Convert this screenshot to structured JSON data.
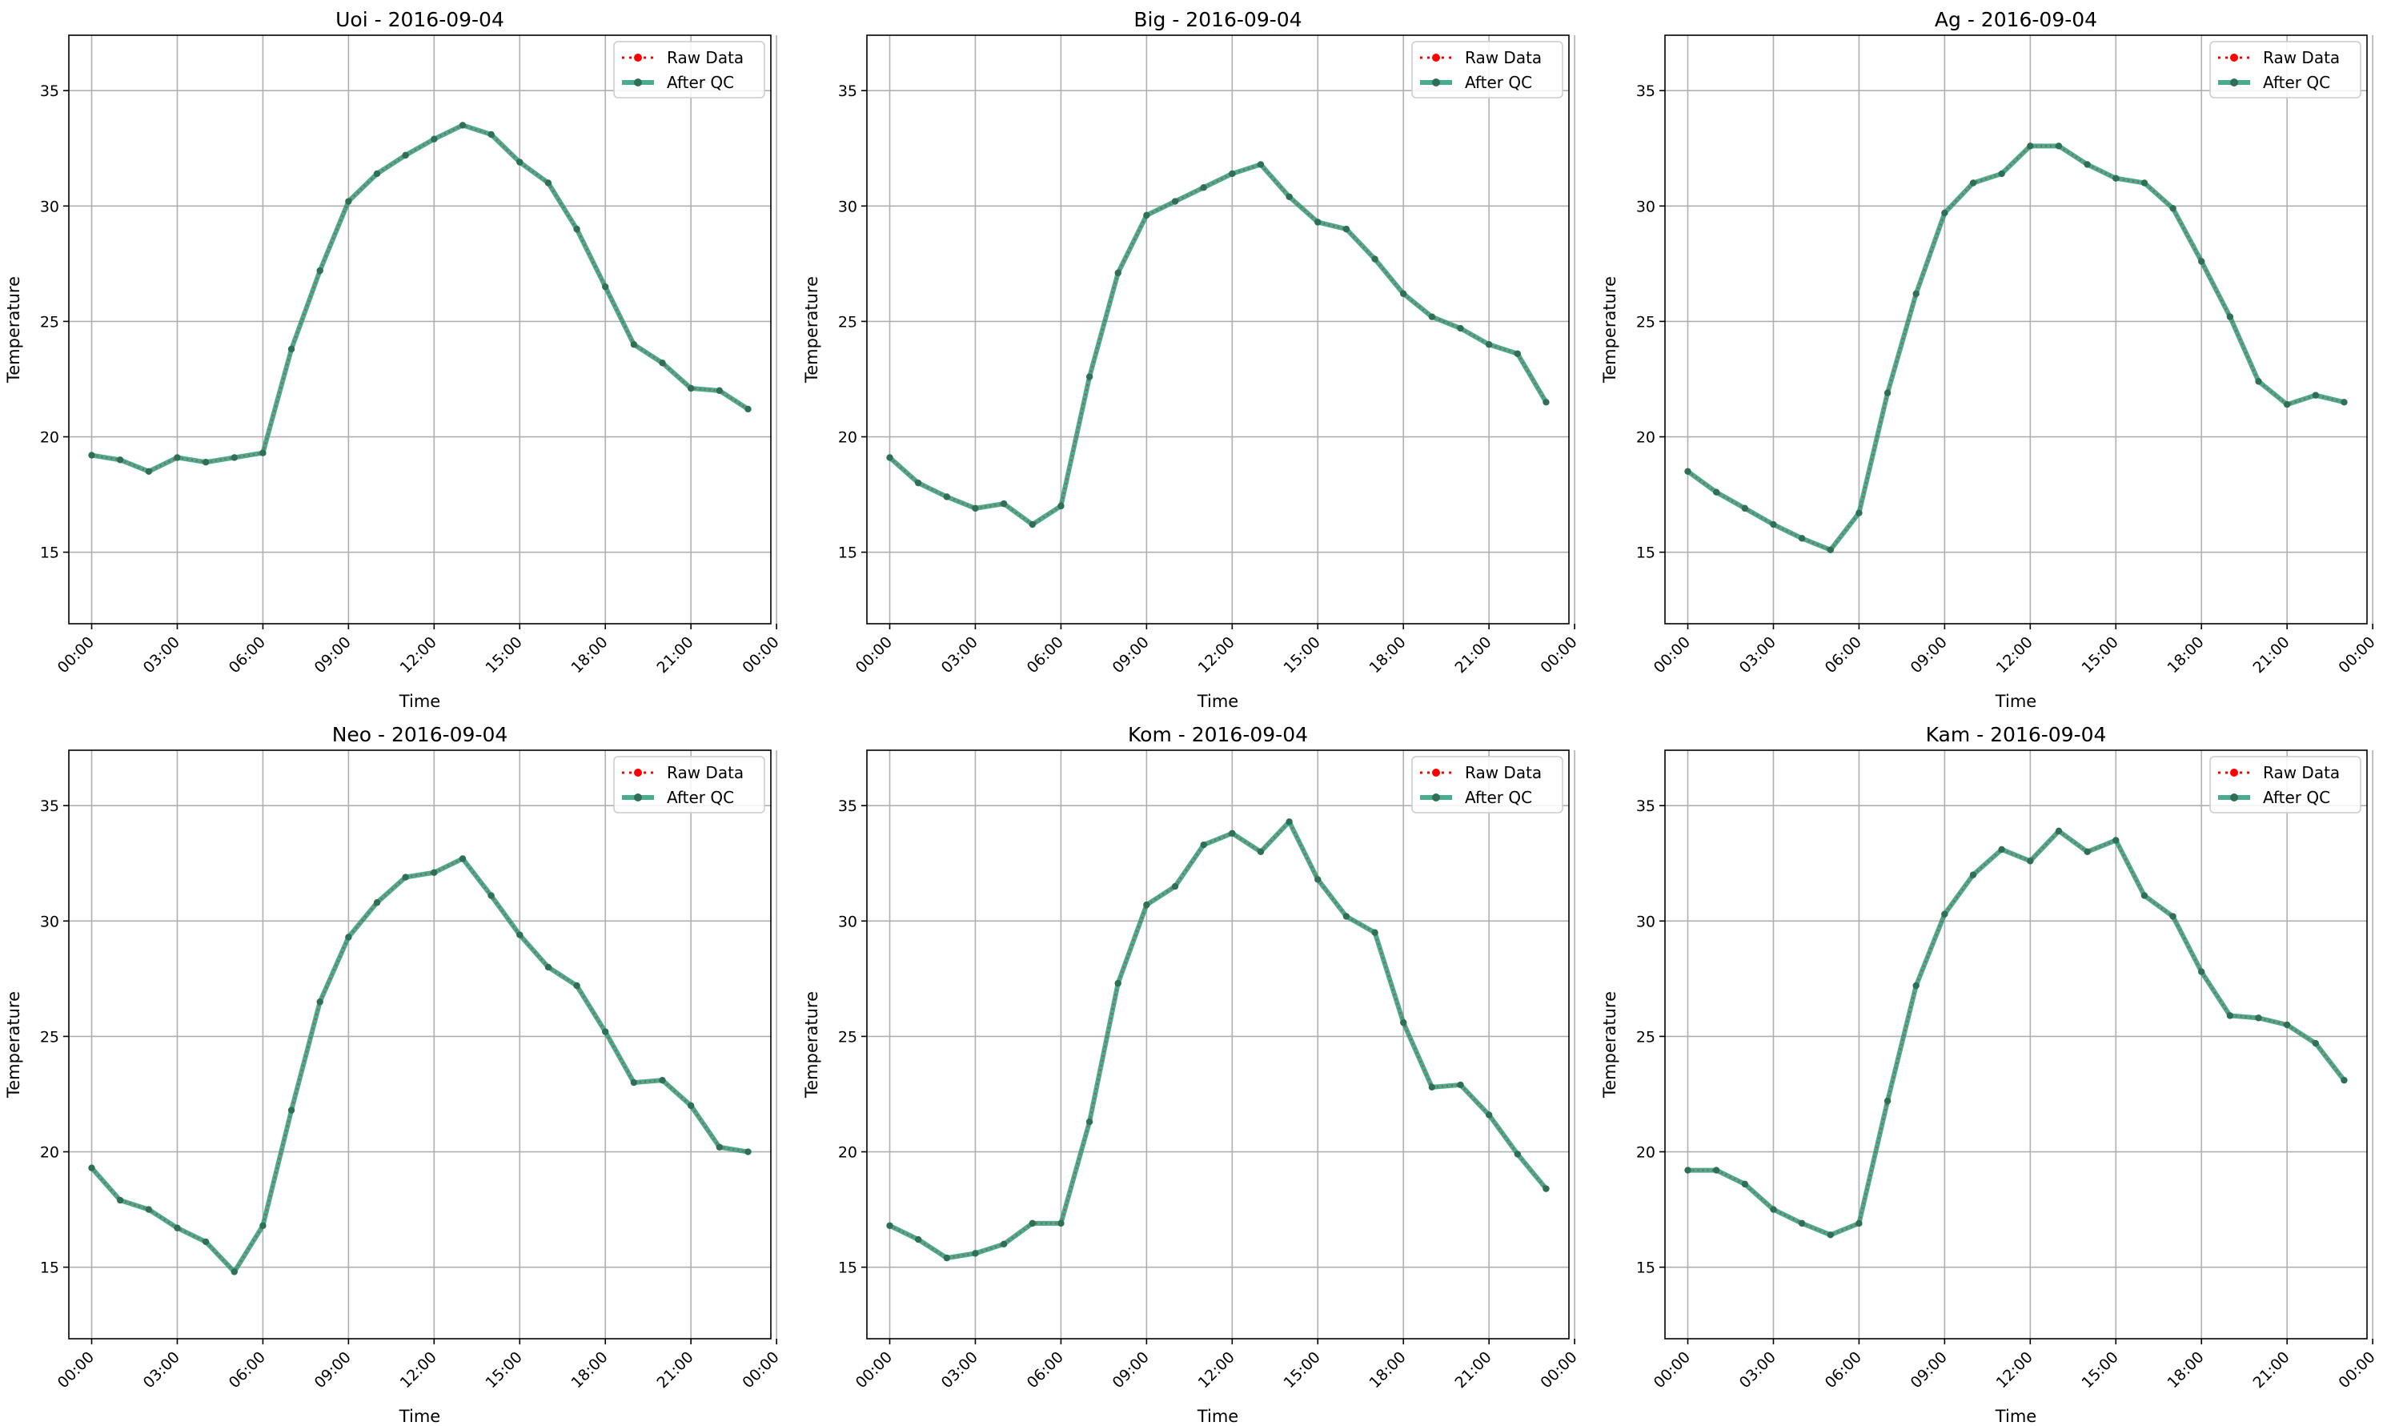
{
  "chart_data": [
    {
      "type": "line",
      "title": "Uoi - 2016-09-04",
      "xlabel": "Time",
      "ylabel": "Temperature",
      "x": [
        "00:00",
        "01:00",
        "02:00",
        "03:00",
        "04:00",
        "05:00",
        "06:00",
        "07:00",
        "08:00",
        "09:00",
        "10:00",
        "11:00",
        "12:00",
        "13:00",
        "14:00",
        "15:00",
        "16:00",
        "17:00",
        "18:00",
        "19:00",
        "20:00",
        "21:00",
        "22:00",
        "23:00"
      ],
      "xticks": [
        "00:00",
        "03:00",
        "06:00",
        "09:00",
        "12:00",
        "15:00",
        "18:00",
        "21:00",
        "00:00"
      ],
      "yticks": [
        15,
        20,
        25,
        30,
        35
      ],
      "ylim": [
        11.9,
        37.4
      ],
      "grid": true,
      "legend": "top-right",
      "series": [
        {
          "name": "Raw Data",
          "color": "#ff0000",
          "style": "dotted",
          "values": [
            19.2,
            19.0,
            18.5,
            19.1,
            18.9,
            19.1,
            19.3,
            23.8,
            27.2,
            30.2,
            31.4,
            32.2,
            32.9,
            33.5,
            33.1,
            31.9,
            31.0,
            29.0,
            26.5,
            24.0,
            23.2,
            22.1,
            22.0,
            21.2
          ]
        },
        {
          "name": "After QC",
          "color": "#2a9d7a",
          "style": "solid",
          "values": [
            19.2,
            19.0,
            18.5,
            19.1,
            18.9,
            19.1,
            19.3,
            23.8,
            27.2,
            30.2,
            31.4,
            32.2,
            32.9,
            33.5,
            33.1,
            31.9,
            31.0,
            29.0,
            26.5,
            24.0,
            23.2,
            22.1,
            22.0,
            21.2
          ]
        }
      ]
    },
    {
      "type": "line",
      "title": "Big - 2016-09-04",
      "xlabel": "Time",
      "ylabel": "Temperature",
      "x": [
        "00:00",
        "01:00",
        "02:00",
        "03:00",
        "04:00",
        "05:00",
        "06:00",
        "07:00",
        "08:00",
        "09:00",
        "10:00",
        "11:00",
        "12:00",
        "13:00",
        "14:00",
        "15:00",
        "16:00",
        "17:00",
        "18:00",
        "19:00",
        "20:00",
        "21:00",
        "22:00",
        "23:00"
      ],
      "xticks": [
        "00:00",
        "03:00",
        "06:00",
        "09:00",
        "12:00",
        "15:00",
        "18:00",
        "21:00",
        "00:00"
      ],
      "yticks": [
        15,
        20,
        25,
        30,
        35
      ],
      "ylim": [
        11.9,
        37.4
      ],
      "grid": true,
      "legend": "top-right",
      "series": [
        {
          "name": "Raw Data",
          "color": "#ff0000",
          "style": "dotted",
          "values": [
            19.1,
            18.0,
            17.4,
            16.9,
            17.1,
            16.2,
            17.0,
            22.6,
            27.1,
            29.6,
            30.2,
            30.8,
            31.4,
            31.8,
            30.4,
            29.3,
            29.0,
            27.7,
            26.2,
            25.2,
            24.7,
            24.0,
            23.6,
            21.5
          ]
        },
        {
          "name": "After QC",
          "color": "#2a9d7a",
          "style": "solid",
          "values": [
            19.1,
            18.0,
            17.4,
            16.9,
            17.1,
            16.2,
            17.0,
            22.6,
            27.1,
            29.6,
            30.2,
            30.8,
            31.4,
            31.8,
            30.4,
            29.3,
            29.0,
            27.7,
            26.2,
            25.2,
            24.7,
            24.0,
            23.6,
            21.5
          ]
        }
      ]
    },
    {
      "type": "line",
      "title": "Ag - 2016-09-04",
      "xlabel": "Time",
      "ylabel": "Temperature",
      "x": [
        "00:00",
        "01:00",
        "02:00",
        "03:00",
        "04:00",
        "05:00",
        "06:00",
        "07:00",
        "08:00",
        "09:00",
        "10:00",
        "11:00",
        "12:00",
        "13:00",
        "14:00",
        "15:00",
        "16:00",
        "17:00",
        "18:00",
        "19:00",
        "20:00",
        "21:00",
        "22:00",
        "23:00"
      ],
      "xticks": [
        "00:00",
        "03:00",
        "06:00",
        "09:00",
        "12:00",
        "15:00",
        "18:00",
        "21:00",
        "00:00"
      ],
      "yticks": [
        15,
        20,
        25,
        30,
        35
      ],
      "ylim": [
        11.9,
        37.4
      ],
      "grid": true,
      "legend": "top-right",
      "series": [
        {
          "name": "Raw Data",
          "color": "#ff0000",
          "style": "dotted",
          "values": [
            18.5,
            17.6,
            16.9,
            16.2,
            15.6,
            15.1,
            16.7,
            21.9,
            26.2,
            29.7,
            31.0,
            31.4,
            32.6,
            32.6,
            31.8,
            31.2,
            31.0,
            29.9,
            27.6,
            25.2,
            22.4,
            21.4,
            21.8,
            21.5
          ]
        },
        {
          "name": "After QC",
          "color": "#2a9d7a",
          "style": "solid",
          "values": [
            18.5,
            17.6,
            16.9,
            16.2,
            15.6,
            15.1,
            16.7,
            21.9,
            26.2,
            29.7,
            31.0,
            31.4,
            32.6,
            32.6,
            31.8,
            31.2,
            31.0,
            29.9,
            27.6,
            25.2,
            22.4,
            21.4,
            21.8,
            21.5
          ]
        }
      ]
    },
    {
      "type": "line",
      "title": "Neo - 2016-09-04",
      "xlabel": "Time",
      "ylabel": "Temperature",
      "x": [
        "00:00",
        "01:00",
        "02:00",
        "03:00",
        "04:00",
        "05:00",
        "06:00",
        "07:00",
        "08:00",
        "09:00",
        "10:00",
        "11:00",
        "12:00",
        "13:00",
        "14:00",
        "15:00",
        "16:00",
        "17:00",
        "18:00",
        "19:00",
        "20:00",
        "21:00",
        "22:00",
        "23:00"
      ],
      "xticks": [
        "00:00",
        "03:00",
        "06:00",
        "09:00",
        "12:00",
        "15:00",
        "18:00",
        "21:00",
        "00:00"
      ],
      "yticks": [
        15,
        20,
        25,
        30,
        35
      ],
      "ylim": [
        11.9,
        37.4
      ],
      "grid": true,
      "legend": "top-right",
      "series": [
        {
          "name": "Raw Data",
          "color": "#ff0000",
          "style": "dotted",
          "values": [
            19.3,
            17.9,
            17.5,
            16.7,
            16.1,
            14.8,
            16.8,
            21.8,
            26.5,
            29.3,
            30.8,
            31.9,
            32.1,
            32.7,
            31.1,
            29.4,
            28.0,
            27.2,
            25.2,
            23.0,
            23.1,
            22.0,
            20.2,
            20.0
          ]
        },
        {
          "name": "After QC",
          "color": "#2a9d7a",
          "style": "solid",
          "values": [
            19.3,
            17.9,
            17.5,
            16.7,
            16.1,
            14.8,
            16.8,
            21.8,
            26.5,
            29.3,
            30.8,
            31.9,
            32.1,
            32.7,
            31.1,
            29.4,
            28.0,
            27.2,
            25.2,
            23.0,
            23.1,
            22.0,
            20.2,
            20.0
          ]
        }
      ]
    },
    {
      "type": "line",
      "title": "Kom - 2016-09-04",
      "xlabel": "Time",
      "ylabel": "Temperature",
      "x": [
        "00:00",
        "01:00",
        "02:00",
        "03:00",
        "04:00",
        "05:00",
        "06:00",
        "07:00",
        "08:00",
        "09:00",
        "10:00",
        "11:00",
        "12:00",
        "13:00",
        "14:00",
        "15:00",
        "16:00",
        "17:00",
        "18:00",
        "19:00",
        "20:00",
        "21:00",
        "22:00",
        "23:00"
      ],
      "xticks": [
        "00:00",
        "03:00",
        "06:00",
        "09:00",
        "12:00",
        "15:00",
        "18:00",
        "21:00",
        "00:00"
      ],
      "yticks": [
        15,
        20,
        25,
        30,
        35
      ],
      "ylim": [
        11.9,
        37.4
      ],
      "grid": true,
      "legend": "top-right",
      "series": [
        {
          "name": "Raw Data",
          "color": "#ff0000",
          "style": "dotted",
          "values": [
            16.8,
            16.2,
            15.4,
            15.6,
            16.0,
            16.9,
            16.9,
            21.3,
            27.3,
            30.7,
            31.5,
            33.3,
            33.8,
            33.0,
            34.3,
            31.8,
            30.2,
            29.5,
            25.6,
            22.8,
            22.9,
            21.6,
            19.9,
            18.4
          ]
        },
        {
          "name": "After QC",
          "color": "#2a9d7a",
          "style": "solid",
          "values": [
            16.8,
            16.2,
            15.4,
            15.6,
            16.0,
            16.9,
            16.9,
            21.3,
            27.3,
            30.7,
            31.5,
            33.3,
            33.8,
            33.0,
            34.3,
            31.8,
            30.2,
            29.5,
            25.6,
            22.8,
            22.9,
            21.6,
            19.9,
            18.4
          ]
        }
      ]
    },
    {
      "type": "line",
      "title": "Kam - 2016-09-04",
      "xlabel": "Time",
      "ylabel": "Temperature",
      "x": [
        "00:00",
        "01:00",
        "02:00",
        "03:00",
        "04:00",
        "05:00",
        "06:00",
        "07:00",
        "08:00",
        "09:00",
        "10:00",
        "11:00",
        "12:00",
        "13:00",
        "14:00",
        "15:00",
        "16:00",
        "17:00",
        "18:00",
        "19:00",
        "20:00",
        "21:00",
        "22:00",
        "23:00"
      ],
      "xticks": [
        "00:00",
        "03:00",
        "06:00",
        "09:00",
        "12:00",
        "15:00",
        "18:00",
        "21:00",
        "00:00"
      ],
      "yticks": [
        15,
        20,
        25,
        30,
        35
      ],
      "ylim": [
        11.9,
        37.4
      ],
      "grid": true,
      "legend": "top-right",
      "series": [
        {
          "name": "Raw Data",
          "color": "#ff0000",
          "style": "dotted",
          "values": [
            19.2,
            19.2,
            18.6,
            17.5,
            16.9,
            16.4,
            16.9,
            22.2,
            27.2,
            30.3,
            32.0,
            33.1,
            32.6,
            33.9,
            33.0,
            33.5,
            31.1,
            30.2,
            27.8,
            25.9,
            25.8,
            25.5,
            24.7,
            23.1
          ]
        },
        {
          "name": "After QC",
          "color": "#2a9d7a",
          "style": "solid",
          "values": [
            19.2,
            19.2,
            18.6,
            17.5,
            16.9,
            16.4,
            16.9,
            22.2,
            27.2,
            30.3,
            32.0,
            33.1,
            32.6,
            33.9,
            33.0,
            33.5,
            31.1,
            30.2,
            27.8,
            25.9,
            25.8,
            25.5,
            24.7,
            23.1
          ]
        }
      ]
    }
  ]
}
